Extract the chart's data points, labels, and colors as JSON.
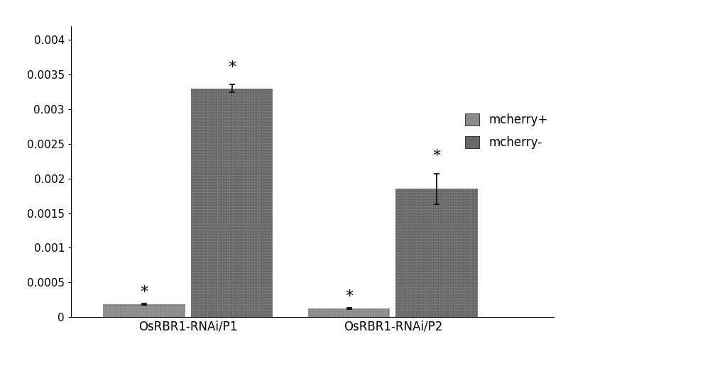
{
  "groups": [
    "OsRBR1-RNAi/P1",
    "OsRBR1-RNAi/P2"
  ],
  "series": [
    "mcherry+",
    "mcherry-"
  ],
  "values": [
    [
      0.000185,
      0.0033
    ],
    [
      0.000125,
      0.00185
    ]
  ],
  "errors": [
    [
      1.5e-05,
      5.5e-05
    ],
    [
      1.2e-05,
      0.00022
    ]
  ],
  "bar_color_plus": "#8a8a8a",
  "bar_color_minus": "#6a6a6a",
  "ylim": [
    0,
    0.0042
  ],
  "yticks": [
    0,
    0.0005,
    0.001,
    0.0015,
    0.002,
    0.0025,
    0.003,
    0.0035,
    0.004
  ],
  "bar_width": 0.28,
  "group_centers": [
    0.3,
    1.0
  ],
  "legend_labels": [
    "mcherry+",
    "mcherry-"
  ],
  "asterisk_fontsize": 16,
  "tick_fontsize": 11,
  "label_fontsize": 12,
  "background_color": "#ffffff",
  "plot_bg_color": "#ffffff",
  "figwidth": 10.0,
  "figheight": 5.26
}
